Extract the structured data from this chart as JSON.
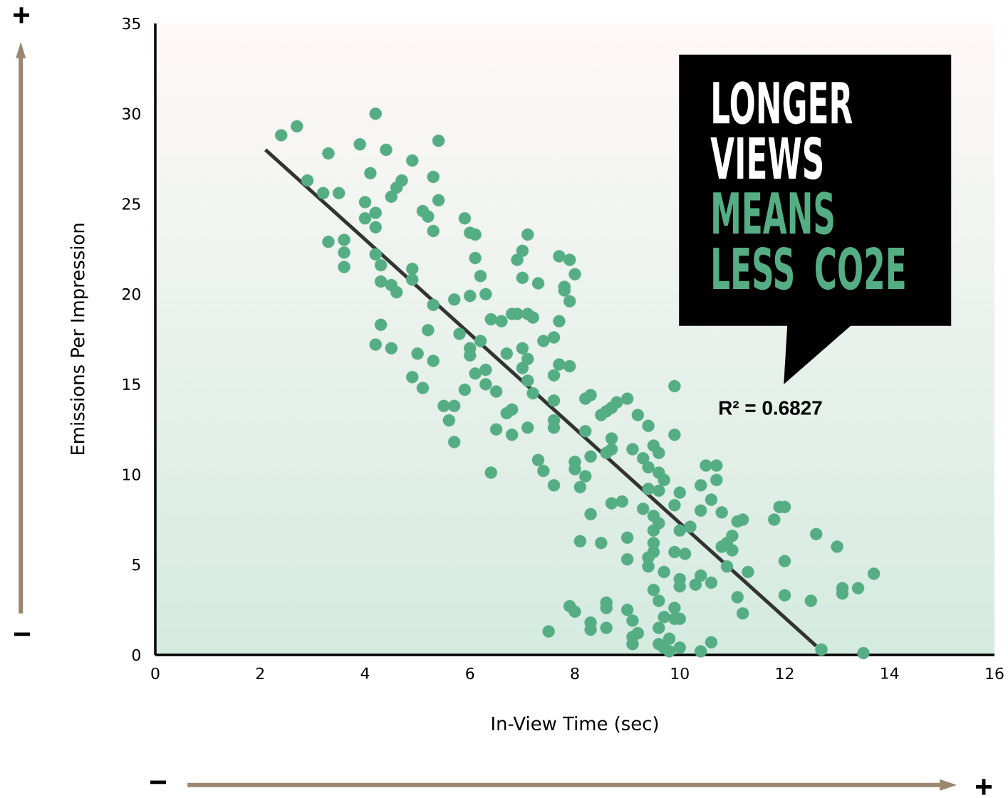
{
  "chart_data": {
    "type": "scatter",
    "xlabel": "In-View Time (sec)",
    "ylabel": "Emissions Per Impression",
    "xlim": [
      0,
      16
    ],
    "xticks": [
      0,
      2,
      4,
      6,
      8,
      10,
      12,
      14,
      16
    ],
    "ylim": [
      0,
      35
    ],
    "yticks": [
      0,
      5,
      10,
      15,
      20,
      25,
      30,
      35
    ],
    "grid": false,
    "marker": "circle",
    "annotations": [
      "LONGER VIEWS",
      "MEANS LESS CO2E",
      "R² = 0.6827",
      "+",
      "−",
      "−",
      "+"
    ],
    "series": [
      {
        "color": "#55ad84",
        "x": [
          2.4,
          2.7,
          2.9,
          3.3,
          3.2,
          3.5,
          3.3,
          3.6,
          3.6,
          3.6,
          3.9,
          4.2,
          4.1,
          4.4,
          4.0,
          4.0,
          4.2,
          4.2,
          4.2,
          4.3,
          4.3,
          4.3,
          4.2,
          4.5,
          4.5,
          4.6,
          4.5,
          4.6,
          4.7,
          4.9,
          5.4,
          5.3,
          5.4,
          5.1,
          5.2,
          5.3,
          4.9,
          4.9,
          5.3,
          5.2,
          5.3,
          5.0,
          4.9,
          5.1,
          5.5,
          5.7,
          5.6,
          5.7,
          5.9,
          6.0,
          6.1,
          6.1,
          6.2,
          6.3,
          6.0,
          5.7,
          5.8,
          6.0,
          6.0,
          6.2,
          5.9,
          6.1,
          6.3,
          6.3,
          6.5,
          6.4,
          6.6,
          6.8,
          6.9,
          6.7,
          6.7,
          6.8,
          6.5,
          6.8,
          6.4,
          6.9,
          7.0,
          7.1,
          7.0,
          7.3,
          7.1,
          7.2,
          7.0,
          7.1,
          7.0,
          7.1,
          7.2,
          7.1,
          7.3,
          7.4,
          7.6,
          7.4,
          7.6,
          7.7,
          7.6,
          7.6,
          7.6,
          7.6,
          7.7,
          7.9,
          7.7,
          7.9,
          8.0,
          7.8,
          7.8,
          7.9,
          8.2,
          8.3,
          8.5,
          8.6,
          8.7,
          8.8,
          9.0,
          8.2,
          8.3,
          8.0,
          8.0,
          8.2,
          8.1,
          8.7,
          8.7,
          8.6,
          8.9,
          8.7,
          9.1,
          9.3,
          9.2,
          9.4,
          9.5,
          9.6,
          9.4,
          9.6,
          9.7,
          9.6,
          9.4,
          9.9,
          10.0,
          9.9,
          9.9,
          9.3,
          9.5,
          9.6,
          9.5,
          10.0,
          10.2,
          10.4,
          10.6,
          10.4,
          10.8,
          10.5,
          10.7,
          10.7,
          8.3,
          8.1,
          8.5,
          9.0,
          9.0,
          9.4,
          9.5,
          9.4,
          9.7,
          9.9,
          10.1,
          10.0,
          10.0,
          10.4,
          10.3,
          10.6,
          10.8,
          10.9,
          11.0,
          11.0,
          11.1,
          11.2,
          11.8,
          11.9,
          12.0,
          10.9,
          11.3,
          11.1,
          11.2,
          12.0,
          12.0,
          12.5,
          12.6,
          13.0,
          12.7,
          13.5,
          13.1,
          13.1,
          13.4,
          13.7,
          7.9,
          8.0,
          8.3,
          8.3,
          8.6,
          8.6,
          8.6,
          9.0,
          9.1,
          9.2,
          9.1,
          9.1,
          9.5,
          9.6,
          9.7,
          9.9,
          9.9,
          10.0,
          9.6,
          9.8,
          9.6,
          9.7,
          9.8,
          10.0,
          10.4,
          10.6,
          7.5,
          9.5
        ],
        "values": [
          28.8,
          29.3,
          26.3,
          27.8,
          25.6,
          25.6,
          22.9,
          23.0,
          22.3,
          21.5,
          28.3,
          30.0,
          26.7,
          28.0,
          25.1,
          24.2,
          24.5,
          23.7,
          22.2,
          21.6,
          20.7,
          18.3,
          17.2,
          17.0,
          20.5,
          20.1,
          25.4,
          25.9,
          26.3,
          27.4,
          28.5,
          26.5,
          25.2,
          24.6,
          24.3,
          23.5,
          21.4,
          20.8,
          19.4,
          18.0,
          16.3,
          16.7,
          15.4,
          14.8,
          13.8,
          13.8,
          13.0,
          11.8,
          24.2,
          23.4,
          23.3,
          22.0,
          21.0,
          20.0,
          19.9,
          19.7,
          17.8,
          17.0,
          16.6,
          17.4,
          14.7,
          15.6,
          15.8,
          15.0,
          14.6,
          18.6,
          18.5,
          18.9,
          18.9,
          16.7,
          13.4,
          13.6,
          12.5,
          12.2,
          10.1,
          21.9,
          22.4,
          23.3,
          20.9,
          20.6,
          18.9,
          18.7,
          17.0,
          16.4,
          15.9,
          15.2,
          14.5,
          12.6,
          10.8,
          10.2,
          9.4,
          17.4,
          17.6,
          18.5,
          14.1,
          13.0,
          12.6,
          15.5,
          16.1,
          16.0,
          22.1,
          21.9,
          21.1,
          20.4,
          20.2,
          19.6,
          14.2,
          14.4,
          13.3,
          13.5,
          13.7,
          14.0,
          14.2,
          12.4,
          11.0,
          10.7,
          10.3,
          9.9,
          9.3,
          12.0,
          11.4,
          11.2,
          8.5,
          8.4,
          11.4,
          10.9,
          13.3,
          12.7,
          11.6,
          11.2,
          10.4,
          10.1,
          9.7,
          9.1,
          9.2,
          8.3,
          9.0,
          12.2,
          14.9,
          8.1,
          7.7,
          7.3,
          6.9,
          6.9,
          7.1,
          9.4,
          8.6,
          8.0,
          7.9,
          10.5,
          10.5,
          9.7,
          7.8,
          6.3,
          6.2,
          6.5,
          5.3,
          5.4,
          5.7,
          4.9,
          4.6,
          5.7,
          5.6,
          4.2,
          3.8,
          4.4,
          3.9,
          4.0,
          6.0,
          6.2,
          6.6,
          5.8,
          7.4,
          7.5,
          7.5,
          8.2,
          8.2,
          4.9,
          4.6,
          3.2,
          2.3,
          5.2,
          3.3,
          3.0,
          6.7,
          6.0,
          0.3,
          0.1,
          3.7,
          3.4,
          3.7,
          4.5,
          2.7,
          2.4,
          1.8,
          1.4,
          2.9,
          2.6,
          1.5,
          2.5,
          1.9,
          1.2,
          0.6,
          1.0,
          3.6,
          3.0,
          2.1,
          2.6,
          2.0,
          2.0,
          1.5,
          0.9,
          0.6,
          0.4,
          0.2,
          0.4,
          0.2,
          0.7,
          1.3,
          6.2
        ]
      },
      {
        "type": "line",
        "color": "#333333",
        "marker": "none",
        "x": [
          2.1,
          12.6
        ],
        "values": [
          28.0,
          0.5
        ]
      }
    ]
  }
}
